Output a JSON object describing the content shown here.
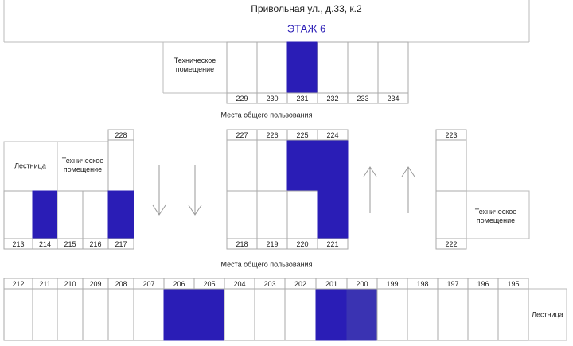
{
  "header": {
    "address": "Привольная ул., д.33, к.2",
    "floor": "ЭТАЖ 6"
  },
  "rooms": [
    {
      "number": 229
    },
    {
      "number": 230
    },
    {
      "number": 231,
      "color": "#2a1db6"
    },
    {
      "number": 232
    },
    {
      "number": 233
    },
    {
      "number": 234
    },
    {
      "number": 228
    },
    {
      "number": 227
    },
    {
      "number": 226
    },
    {
      "number": 225,
      "color": "#2a1db6"
    },
    {
      "number": 224,
      "color": "#2a1db6"
    },
    {
      "number": 223
    },
    {
      "number": 213
    },
    {
      "number": 214,
      "color": "#2a1db6"
    },
    {
      "number": 215
    },
    {
      "number": 216
    },
    {
      "number": 217,
      "color": "#2a1db6"
    },
    {
      "number": 218
    },
    {
      "number": 219
    },
    {
      "number": 220
    },
    {
      "number": 221,
      "color": "#2a1db6"
    },
    {
      "number": 222
    },
    {
      "number": 212
    },
    {
      "number": 211
    },
    {
      "number": 210
    },
    {
      "number": 209
    },
    {
      "number": 208
    },
    {
      "number": 207
    },
    {
      "number": 206,
      "color": "#2a1db6"
    },
    {
      "number": 205,
      "color": "#2a1db6"
    },
    {
      "number": 204
    },
    {
      "number": 203
    },
    {
      "number": 202
    },
    {
      "number": 201,
      "color": "#2a1db6"
    },
    {
      "number": 200,
      "color": "#3a33b2"
    },
    {
      "number": 199
    },
    {
      "number": 198
    },
    {
      "number": 197
    },
    {
      "number": 196
    },
    {
      "number": 195
    }
  ],
  "technical_rooms": [
    "Техническое помещение",
    "Техническое помещение",
    "Техническое помещение"
  ],
  "stairs": [
    "Лестница",
    "Лестница"
  ],
  "common_areas": [
    "Места общего пользования",
    "Места общего пользования"
  ]
}
